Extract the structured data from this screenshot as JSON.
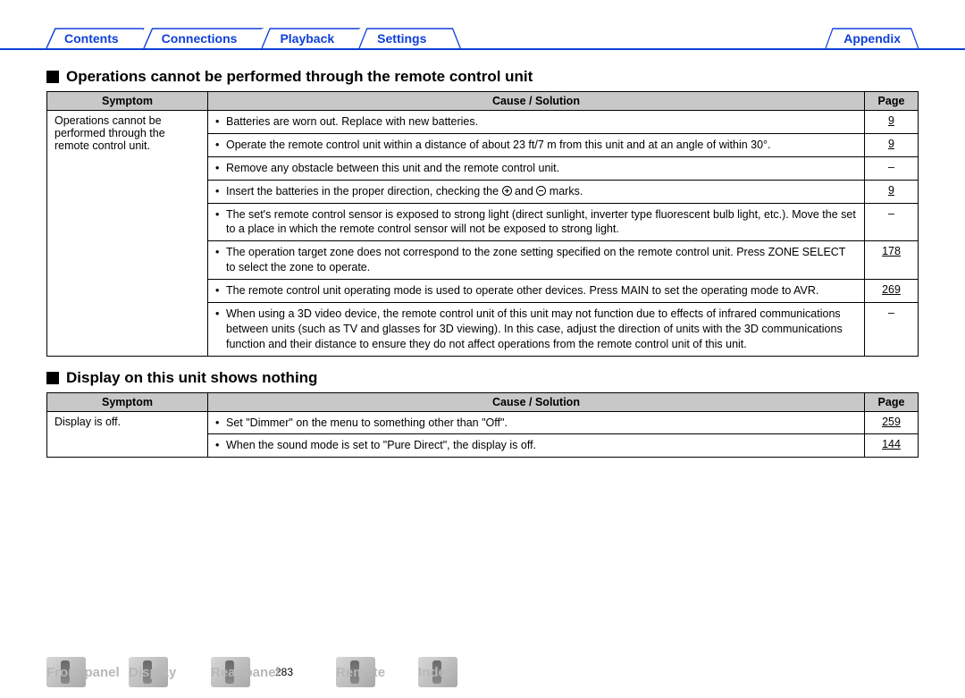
{
  "colors": {
    "nav_link": "#1040d8",
    "nav_underline": "#1040d8",
    "table_header_bg": "#c8c8c8",
    "table_border": "#000000",
    "body_text": "#000000",
    "bottom_label": "#b8b8b8",
    "background": "#ffffff"
  },
  "typography": {
    "base_font": "Arial, Helvetica, sans-serif",
    "base_size_pt": 10,
    "section_title_size_pt": 13,
    "nav_size_pt": 11
  },
  "top_nav": {
    "items": [
      {
        "label": "Contents"
      },
      {
        "label": "Connections"
      },
      {
        "label": "Playback"
      },
      {
        "label": "Settings"
      },
      {
        "label": "Appendix"
      }
    ]
  },
  "section1": {
    "title": "Operations cannot be performed through the remote control unit",
    "headers": {
      "symptom": "Symptom",
      "cause": "Cause / Solution",
      "page": "Page"
    },
    "symptom": "Operations cannot be performed through the remote control unit.",
    "rows": [
      {
        "cause": "Batteries are worn out. Replace with new batteries.",
        "page": "9"
      },
      {
        "cause": "Operate the remote control unit within a distance of about 23 ft/7 m from this unit and at an angle of within 30°.",
        "page": "9"
      },
      {
        "cause": "Remove any obstacle between this unit and the remote control unit.",
        "page": "–"
      },
      {
        "cause": "Insert the batteries in the proper direction, checking the ⊕ and ⊖ marks.",
        "page": "9"
      },
      {
        "cause": "The set's remote control sensor is exposed to strong light (direct sunlight, inverter type fluorescent bulb light, etc.). Move the set to a place in which the remote control sensor will not be exposed to strong light.",
        "page": "–"
      },
      {
        "cause": "The operation target zone does not correspond to the zone setting specified on the remote control unit. Press ZONE SELECT to select the zone to operate.",
        "page": "178"
      },
      {
        "cause": "The remote control unit operating mode is used to operate other devices. Press MAIN to set the operating mode to AVR.",
        "page": "269"
      },
      {
        "cause": "When using a 3D video device, the remote control unit of this unit may not function due to effects of infrared communications between units (such as TV and glasses for 3D viewing). In this case, adjust the direction of units with the 3D communications function and their distance to ensure they do not affect operations from the remote control unit of this unit.",
        "page": "–"
      }
    ]
  },
  "section2": {
    "title": "Display on this unit shows nothing",
    "headers": {
      "symptom": "Symptom",
      "cause": "Cause / Solution",
      "page": "Page"
    },
    "symptom": "Display is off.",
    "rows": [
      {
        "cause": "Set \"Dimmer\" on the menu to something other than \"Off\".",
        "page": "259"
      },
      {
        "cause": "When the sound mode is set to \"Pure Direct\", the display is off.",
        "page": "144"
      }
    ]
  },
  "page_number": "283",
  "bottom_nav": {
    "items": [
      {
        "label": "Front panel"
      },
      {
        "label": "Display"
      },
      {
        "label": "Rear panel"
      },
      {
        "label": "Remote"
      },
      {
        "label": "Index"
      }
    ]
  }
}
